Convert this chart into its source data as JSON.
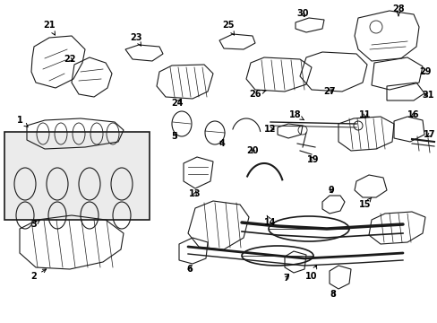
{
  "bg_color": "#ffffff",
  "line_color": "#1a1a1a",
  "fig_width": 4.89,
  "fig_height": 3.6,
  "dpi": 100,
  "lw": 0.8
}
